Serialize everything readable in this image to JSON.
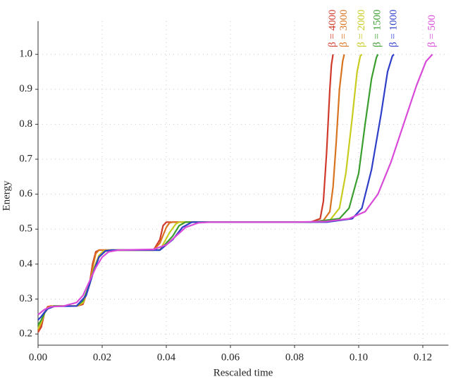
{
  "chart_data": {
    "type": "line",
    "xlabel": "Rescaled time",
    "ylabel": "Energy",
    "xlim": [
      0,
      0.128
    ],
    "ylim": [
      0.168,
      1.095
    ],
    "xticks": [
      {
        "value": 0,
        "label": "0.00"
      },
      0.02,
      0.04,
      0.06,
      0.08,
      {
        "value": 0.1,
        "label": "0.10"
      },
      0.12
    ],
    "yticks": [
      0.2,
      0.3,
      0.4,
      0.5,
      0.6,
      0.7,
      0.8,
      0.9,
      {
        "value": 1,
        "label": "1.0"
      }
    ],
    "grid": true,
    "series": [
      {
        "name": "β = 4000",
        "color": "#d03a2a",
        "x": [
          0,
          0.001,
          0.002,
          0.003,
          0.004,
          0.012,
          0.014,
          0.016,
          0.017,
          0.018,
          0.019,
          0.02,
          0.036,
          0.038,
          0.039,
          0.04,
          0.041,
          0.085,
          0.088,
          0.089,
          0.09,
          0.091,
          0.0915,
          0.092
        ],
        "values": [
          0.205,
          0.22,
          0.26,
          0.278,
          0.28,
          0.28,
          0.285,
          0.34,
          0.4,
          0.435,
          0.44,
          0.44,
          0.44,
          0.47,
          0.51,
          0.52,
          0.52,
          0.52,
          0.53,
          0.58,
          0.72,
          0.9,
          0.97,
          1.0
        ]
      },
      {
        "name": "β = 3000",
        "color": "#d9731f",
        "x": [
          0,
          0.001,
          0.002,
          0.003,
          0.004,
          0.012,
          0.014,
          0.016,
          0.017,
          0.018,
          0.019,
          0.02,
          0.036,
          0.038,
          0.04,
          0.041,
          0.042,
          0.085,
          0.089,
          0.091,
          0.092,
          0.093,
          0.094,
          0.095,
          0.0955
        ],
        "values": [
          0.21,
          0.23,
          0.26,
          0.276,
          0.28,
          0.28,
          0.288,
          0.34,
          0.39,
          0.43,
          0.44,
          0.44,
          0.44,
          0.46,
          0.505,
          0.518,
          0.52,
          0.52,
          0.525,
          0.55,
          0.62,
          0.75,
          0.9,
          0.98,
          1.0
        ]
      },
      {
        "name": "β = 2000",
        "color": "#c8cc1e",
        "x": [
          0,
          0.001,
          0.002,
          0.003,
          0.0045,
          0.012,
          0.014,
          0.016,
          0.0175,
          0.019,
          0.0205,
          0.022,
          0.038,
          0.041,
          0.043,
          0.044,
          0.085,
          0.091,
          0.094,
          0.096,
          0.098,
          0.0995,
          0.1005,
          0.101
        ],
        "values": [
          0.215,
          0.235,
          0.26,
          0.274,
          0.28,
          0.28,
          0.29,
          0.34,
          0.39,
          0.425,
          0.438,
          0.44,
          0.44,
          0.49,
          0.515,
          0.52,
          0.52,
          0.525,
          0.56,
          0.66,
          0.82,
          0.95,
          0.995,
          1.0
        ]
      },
      {
        "name": "β = 1500",
        "color": "#3a9e2e",
        "x": [
          0,
          0.001,
          0.002,
          0.003,
          0.005,
          0.012,
          0.014,
          0.016,
          0.0175,
          0.019,
          0.021,
          0.023,
          0.038,
          0.042,
          0.044,
          0.046,
          0.085,
          0.094,
          0.097,
          0.1,
          0.102,
          0.104,
          0.1055,
          0.106
        ],
        "values": [
          0.225,
          0.24,
          0.26,
          0.272,
          0.28,
          0.28,
          0.295,
          0.34,
          0.385,
          0.42,
          0.437,
          0.44,
          0.44,
          0.48,
          0.51,
          0.52,
          0.52,
          0.53,
          0.56,
          0.66,
          0.8,
          0.93,
          0.99,
          1.0
        ]
      },
      {
        "name": "β = 1000",
        "color": "#2e3ec8",
        "x": [
          0,
          0.001,
          0.002,
          0.003,
          0.005,
          0.012,
          0.015,
          0.017,
          0.019,
          0.021,
          0.023,
          0.038,
          0.042,
          0.045,
          0.048,
          0.09,
          0.098,
          0.101,
          0.104,
          0.107,
          0.109,
          0.1105,
          0.111
        ],
        "values": [
          0.24,
          0.25,
          0.262,
          0.272,
          0.279,
          0.28,
          0.31,
          0.37,
          0.42,
          0.438,
          0.44,
          0.44,
          0.47,
          0.505,
          0.52,
          0.52,
          0.53,
          0.56,
          0.67,
          0.83,
          0.95,
          0.995,
          1.0
        ]
      },
      {
        "name": "β = 500",
        "color": "#d94ad9",
        "x": [
          0,
          0.002,
          0.004,
          0.008,
          0.012,
          0.014,
          0.016,
          0.018,
          0.02,
          0.022,
          0.025,
          0.036,
          0.04,
          0.043,
          0.046,
          0.05,
          0.054,
          0.08,
          0.09,
          0.097,
          0.102,
          0.106,
          0.11,
          0.114,
          0.118,
          0.121,
          0.123
        ],
        "values": [
          0.255,
          0.27,
          0.278,
          0.28,
          0.29,
          0.31,
          0.35,
          0.39,
          0.42,
          0.435,
          0.44,
          0.442,
          0.455,
          0.48,
          0.505,
          0.518,
          0.52,
          0.52,
          0.522,
          0.53,
          0.55,
          0.6,
          0.69,
          0.8,
          0.91,
          0.98,
          1.0
        ]
      }
    ]
  }
}
